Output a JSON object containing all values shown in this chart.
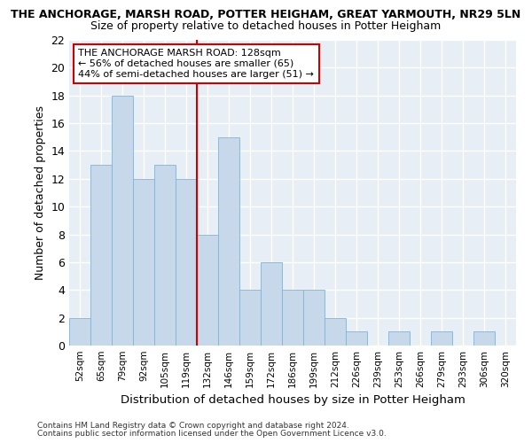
{
  "title": "THE ANCHORAGE, MARSH ROAD, POTTER HEIGHAM, GREAT YARMOUTH, NR29 5LN",
  "subtitle": "Size of property relative to detached houses in Potter Heigham",
  "xlabel": "Distribution of detached houses by size in Potter Heigham",
  "ylabel": "Number of detached properties",
  "bar_color": "#c8d8eb",
  "bar_edge_color": "#8ab0cc",
  "background_color": "#e8eef5",
  "grid_color": "#ffffff",
  "fig_background": "#ffffff",
  "categories": [
    "52sqm",
    "65sqm",
    "79sqm",
    "92sqm",
    "105sqm",
    "119sqm",
    "132sqm",
    "146sqm",
    "159sqm",
    "172sqm",
    "186sqm",
    "199sqm",
    "212sqm",
    "226sqm",
    "239sqm",
    "253sqm",
    "266sqm",
    "279sqm",
    "293sqm",
    "306sqm",
    "320sqm"
  ],
  "values": [
    2,
    13,
    18,
    12,
    13,
    12,
    8,
    15,
    4,
    6,
    4,
    4,
    2,
    1,
    0,
    1,
    0,
    1,
    0,
    1,
    0
  ],
  "vline_index": 6,
  "vline_color": "#cc0000",
  "annotation_line1": "THE ANCHORAGE MARSH ROAD: 128sqm",
  "annotation_line2": "← 56% of detached houses are smaller (65)",
  "annotation_line3": "44% of semi-detached houses are larger (51) →",
  "annotation_box_color": "#ffffff",
  "annotation_box_edge": "#cc0000",
  "ylim": [
    0,
    22
  ],
  "yticks": [
    0,
    2,
    4,
    6,
    8,
    10,
    12,
    14,
    16,
    18,
    20,
    22
  ],
  "footnote1": "Contains HM Land Registry data © Crown copyright and database right 2024.",
  "footnote2": "Contains public sector information licensed under the Open Government Licence v3.0."
}
